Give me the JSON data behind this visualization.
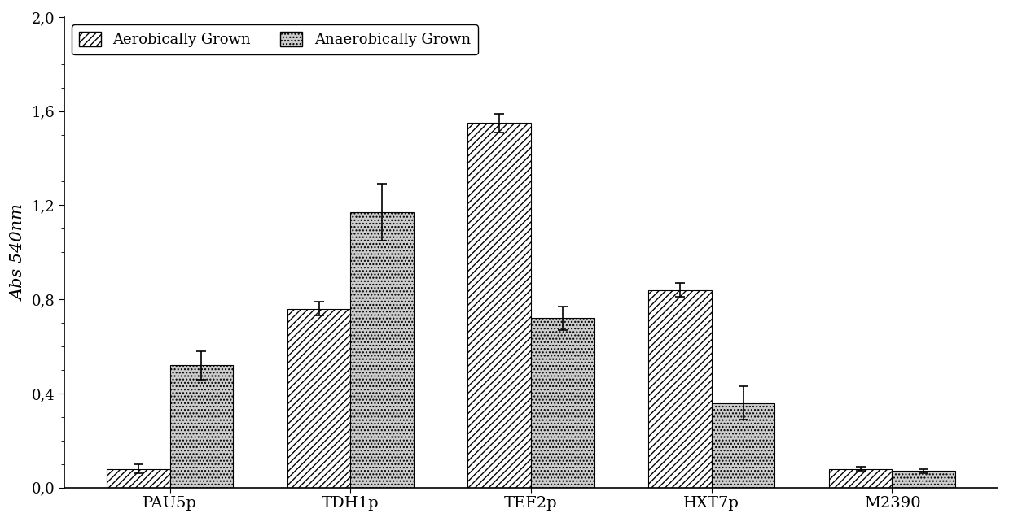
{
  "categories": [
    "PAU5p",
    "TDH1p",
    "TEF2p",
    "HXT7p",
    "M2390"
  ],
  "aerobic_values": [
    0.08,
    0.76,
    1.55,
    0.84,
    0.08
  ],
  "anaerobic_values": [
    0.52,
    1.17,
    0.72,
    0.36,
    0.07
  ],
  "aerobic_errors": [
    0.02,
    0.03,
    0.04,
    0.03,
    0.01
  ],
  "anaerobic_errors": [
    0.06,
    0.12,
    0.05,
    0.07,
    0.01
  ],
  "ylabel": "Abs 540nm",
  "ylim": [
    0.0,
    2.0
  ],
  "yticks": [
    0.0,
    0.4,
    0.8,
    1.2,
    1.6,
    2.0
  ],
  "ytick_labels": [
    "0,0",
    "0,4",
    "0,8",
    "1,2",
    "1,6",
    "2,0"
  ],
  "legend_aerobic": "Aerobically Grown",
  "legend_anaerobic": "Anaerobically Grown",
  "bar_width": 0.35,
  "background_color": "#ffffff",
  "aerobic_hatch": "////",
  "anaerobic_hatch": "....",
  "aerobic_facecolor": "#ffffff",
  "anaerobic_facecolor": "#cccccc",
  "error_capsize": 4,
  "figure_width": 12.39,
  "figure_height": 6.42
}
